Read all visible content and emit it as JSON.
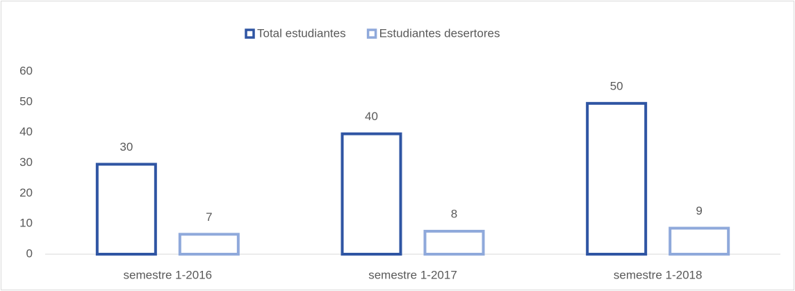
{
  "chart_data": {
    "type": "bar",
    "categories": [
      "semestre 1-2016",
      "semestre 1-2017",
      "semestre 1-2018"
    ],
    "series": [
      {
        "name": "Total estudiantes",
        "color": "#2f55a3",
        "values": [
          30,
          40,
          50
        ]
      },
      {
        "name": "Estudiantes desertores",
        "color": "#8fa9db",
        "values": [
          7,
          8,
          9
        ]
      }
    ],
    "ylim": [
      0,
      60
    ],
    "yticks": [
      0,
      10,
      20,
      30,
      40,
      50,
      60
    ],
    "grid": false,
    "legend": "top"
  }
}
